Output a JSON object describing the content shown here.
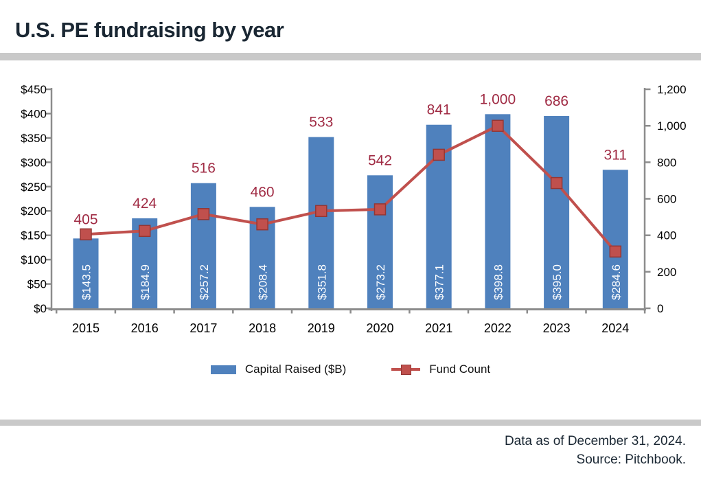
{
  "title": "U.S. PE fundraising by year",
  "footer": {
    "line1": "Data as of December 31, 2024.",
    "line2": "Source: Pitchbook."
  },
  "colors": {
    "bar": "#4f81bd",
    "line": "#c0504d",
    "marker_border": "#943634",
    "data_label": "#a02b44",
    "bar_label": "#ffffff",
    "axis": "#8c8c8c",
    "tick_text": "#000000",
    "divider": "#c9c9c9",
    "heading_text": "#1a2733"
  },
  "chart_data": {
    "type": "bar",
    "title": "U.S. PE fundraising by year",
    "categories": [
      "2015",
      "2016",
      "2017",
      "2018",
      "2019",
      "2020",
      "2021",
      "2022",
      "2023",
      "2024"
    ],
    "series": [
      {
        "name": "Capital Raised ($B)",
        "type": "bar",
        "y_axis": "left",
        "values": [
          143.5,
          184.9,
          257.2,
          208.4,
          351.8,
          273.2,
          377.1,
          398.8,
          395.0,
          284.6
        ],
        "labels": [
          "$143.5",
          "$184.9",
          "$257.2",
          "$208.4",
          "$351.8",
          "$273.2",
          "$377.1",
          "$398.8",
          "$395.0",
          "$284.6"
        ]
      },
      {
        "name": "Fund Count",
        "type": "line",
        "y_axis": "right",
        "values": [
          405,
          424,
          516,
          460,
          533,
          542,
          841,
          1000,
          686,
          311
        ],
        "labels": [
          "405",
          "424",
          "516",
          "460",
          "533",
          "542",
          "841",
          "1,000",
          "686",
          "311"
        ]
      }
    ],
    "left_axis": {
      "min": 0,
      "max": 450,
      "step": 50,
      "tick_labels": [
        "$0",
        "$50",
        "$100",
        "$150",
        "$200",
        "$250",
        "$300",
        "$350",
        "$400",
        "$450"
      ]
    },
    "right_axis": {
      "min": 0,
      "max": 1200,
      "step": 200,
      "tick_labels": [
        "0",
        "200",
        "400",
        "600",
        "800",
        "1,000",
        "1,200"
      ]
    },
    "legend_position": "bottom",
    "grid": false
  }
}
